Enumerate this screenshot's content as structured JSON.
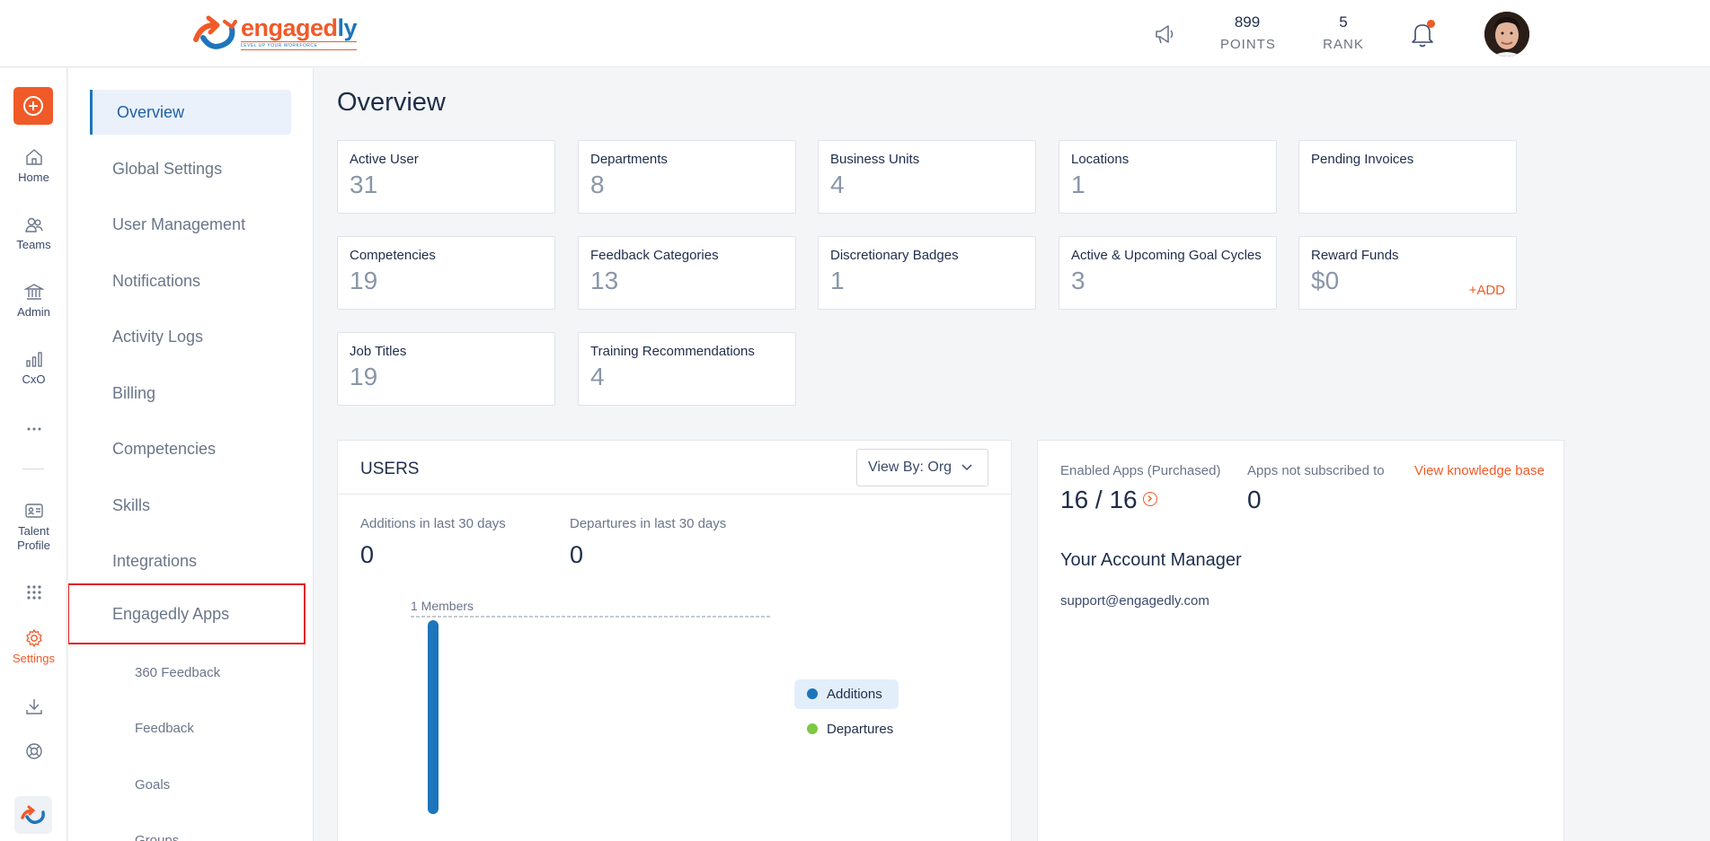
{
  "header": {
    "logo_text_main": "engaged",
    "logo_text_accent": "ly",
    "logo_tagline": "LEVEL UP YOUR WORKFORCE",
    "points_value": "899",
    "points_label": "POINTS",
    "rank_value": "5",
    "rank_label": "RANK"
  },
  "rail": {
    "items": [
      {
        "label": "Home",
        "icon": "home-icon"
      },
      {
        "label": "Teams",
        "icon": "teams-icon"
      },
      {
        "label": "Admin",
        "icon": "admin-icon"
      },
      {
        "label": "CxO",
        "icon": "chart-icon"
      },
      {
        "label": "Talent Profile",
        "icon": "id-card-icon"
      },
      {
        "label": "Settings",
        "icon": "gear-icon"
      }
    ],
    "accent": "#f05a28"
  },
  "sidebar": {
    "items": [
      "Overview",
      "Global Settings",
      "User Management",
      "Notifications",
      "Activity Logs",
      "Billing",
      "Competencies",
      "Skills",
      "Integrations",
      "Engagedly Apps"
    ],
    "sub_items": [
      "360 Feedback",
      "Feedback",
      "Goals",
      "Groups"
    ]
  },
  "main": {
    "title": "Overview",
    "cards": [
      {
        "title": "Active User",
        "value": "31"
      },
      {
        "title": "Departments",
        "value": "8"
      },
      {
        "title": "Business Units",
        "value": "4"
      },
      {
        "title": "Locations",
        "value": "1"
      },
      {
        "title": "Pending Invoices",
        "value": ""
      },
      {
        "title": "Competencies",
        "value": "19"
      },
      {
        "title": "Feedback Categories",
        "value": "13"
      },
      {
        "title": "Discretionary Badges",
        "value": "1"
      },
      {
        "title": "Active & Upcoming Goal Cycles",
        "value": "3"
      },
      {
        "title": "Reward Funds",
        "value": "$0",
        "action": "+ADD"
      },
      {
        "title": "Job Titles",
        "value": "19"
      },
      {
        "title": "Training Recommendations",
        "value": "4"
      }
    ]
  },
  "users": {
    "title": "USERS",
    "view_by": "View By: Org",
    "additions_label": "Additions in last 30 days",
    "additions_value": "0",
    "departures_label": "Departures in last 30 days",
    "departures_value": "0",
    "chart_members_label": "1 Members",
    "legend_additions": "Additions",
    "legend_departures": "Departures",
    "additions_color": "#1d75bc",
    "departures_color": "#7ac943"
  },
  "apps": {
    "enabled_label": "Enabled Apps (Purchased)",
    "enabled_value": "16 / 16",
    "not_subscribed_label": "Apps not subscribed to",
    "not_subscribed_value": "0",
    "kb_link": "View knowledge base",
    "manager_heading": "Your Account Manager",
    "manager_email": "support@engagedly.com"
  }
}
